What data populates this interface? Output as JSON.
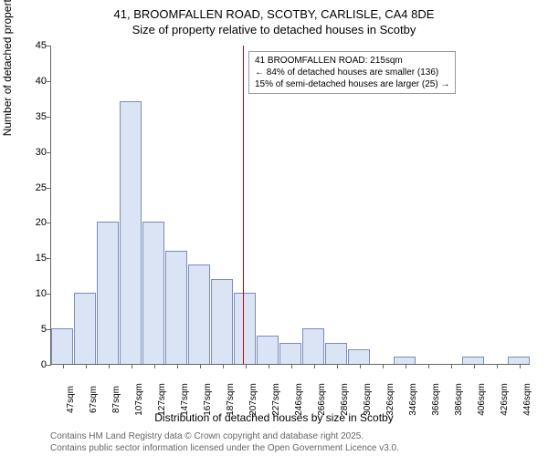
{
  "title_line1": "41, BROOMFALLEN ROAD, SCOTBY, CARLISLE, CA4 8DE",
  "title_line2": "Size of property relative to detached houses in Scotby",
  "y_label": "Number of detached properties",
  "x_label": "Distribution of detached houses by size in Scotby",
  "footer_line1": "Contains HM Land Registry data © Crown copyright and database right 2025.",
  "footer_line2": "Contains public sector information licensed under the Open Government Licence v3.0.",
  "chart": {
    "type": "histogram",
    "ylim": [
      0,
      45
    ],
    "ytick_step": 5,
    "bar_fill": "#dbe4f5",
    "bar_stroke": "#7a8db8",
    "background_color": "#ffffff",
    "ref_line_color": "#cc0000",
    "categories": [
      "47sqm",
      "67sqm",
      "87sqm",
      "107sqm",
      "127sqm",
      "147sqm",
      "167sqm",
      "187sqm",
      "207sqm",
      "227sqm",
      "246sqm",
      "266sqm",
      "286sqm",
      "306sqm",
      "326sqm",
      "346sqm",
      "366sqm",
      "386sqm",
      "406sqm",
      "426sqm",
      "446sqm"
    ],
    "values": [
      5,
      10,
      20,
      37,
      20,
      16,
      14,
      12,
      10,
      4,
      3,
      5,
      3,
      2,
      0,
      1,
      0,
      0,
      1,
      0,
      1
    ],
    "ref_line_position": 8.4,
    "annotation": {
      "line1": "41 BROOMFALLEN ROAD: 215sqm",
      "line2": "← 84% of detached houses are smaller (136)",
      "line3": "15% of semi-detached houses are larger (25) →"
    }
  }
}
